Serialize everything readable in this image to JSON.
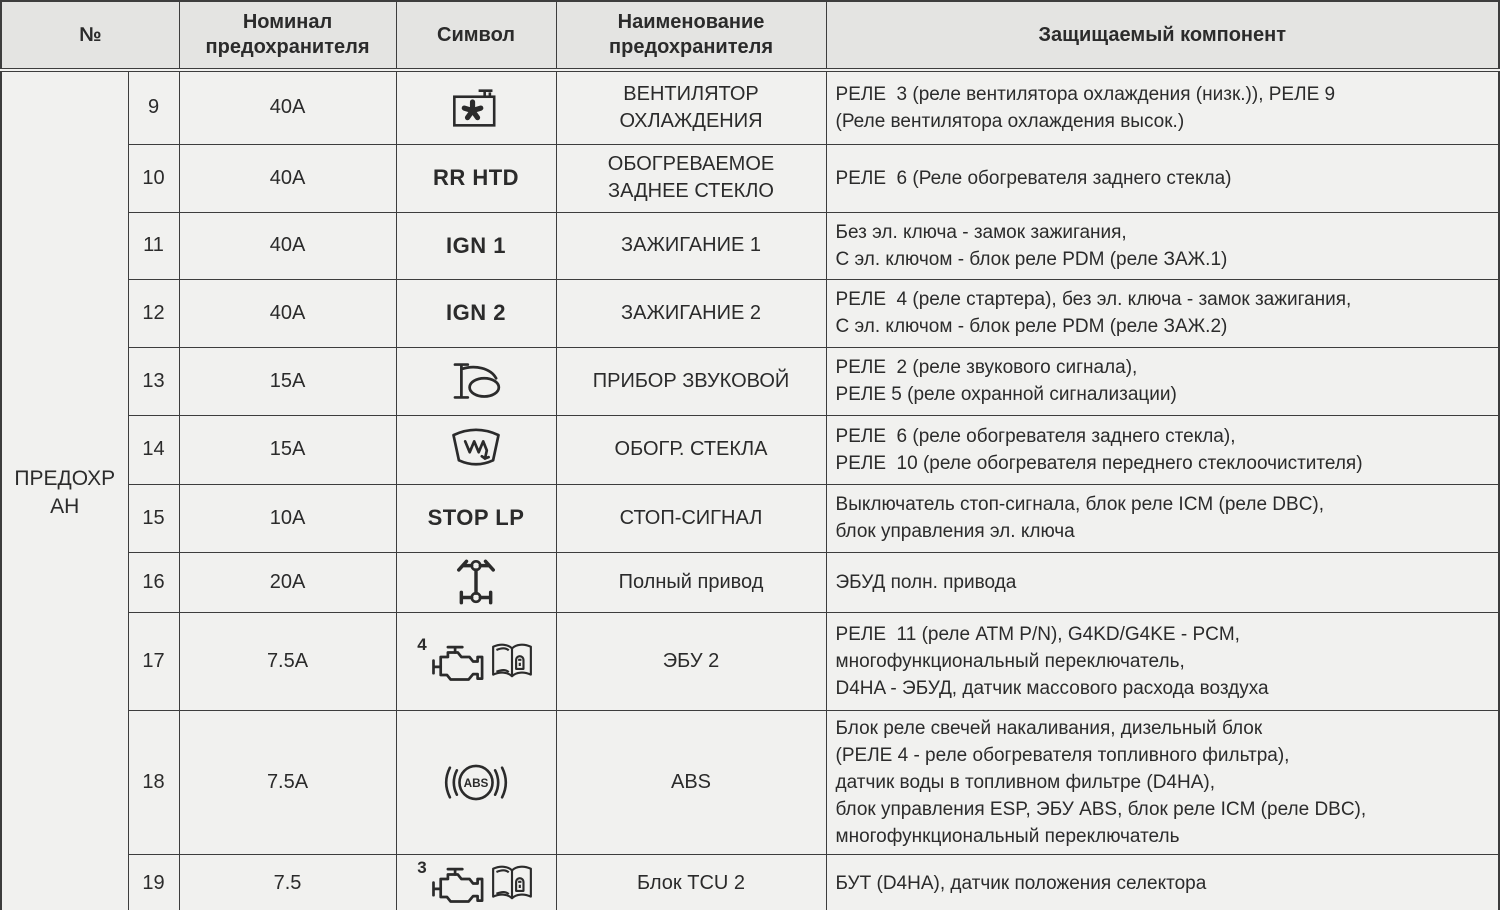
{
  "colors": {
    "cell_bg": "#f1f1ef",
    "header_bg": "#e4e4e2",
    "border": "#3d3d3d",
    "thick": "#1c1c1c",
    "text": "#2b2b2b"
  },
  "table": {
    "group_label": "ПРЕДОХР\nАН",
    "headers": {
      "num": "№",
      "rating": "Номинал\nпредохранителя",
      "symbol": "Символ",
      "name": "Наименование\nпредохранителя",
      "component": "Защищаемый компонент"
    },
    "rows": [
      {
        "num": "9",
        "rating": "40A",
        "symbol": {
          "icons": [
            "cooling-fan-icon"
          ]
        },
        "name": "ВЕНТИЛЯТОР\nОХЛАЖДЕНИЯ",
        "component": "РЕЛЕ  3 (реле вентилятора охлаждения (низк.)), РЕЛЕ 9\n(Реле вентилятора охлаждения высок.)"
      },
      {
        "num": "10",
        "rating": "40A",
        "symbol": {
          "text": "RR HTD"
        },
        "name": "ОБОГРЕВАЕМОЕ\nЗАДНЕЕ СТЕКЛО",
        "component": "РЕЛЕ  6 (Реле обогревателя заднего стекла)"
      },
      {
        "num": "11",
        "rating": "40A",
        "symbol": {
          "text": "IGN 1"
        },
        "name": "ЗАЖИГАНИЕ 1",
        "component": "Без эл. ключа - замок зажигания,\nС эл. ключом - блок реле PDM (реле ЗАЖ.1)"
      },
      {
        "num": "12",
        "rating": "40A",
        "symbol": {
          "text": "IGN 2"
        },
        "name": "ЗАЖИГАНИЕ 2",
        "component": "РЕЛЕ  4 (реле стартера), без эл. ключа - замок зажигания,\nС эл. ключом - блок реле PDM (реле ЗАЖ.2)"
      },
      {
        "num": "13",
        "rating": "15A",
        "symbol": {
          "icons": [
            "horn-icon"
          ]
        },
        "name": "ПРИБОР ЗВУКОВОЙ",
        "component": "РЕЛЕ  2 (реле звукового сигнала),\nРЕЛЕ 5 (реле охранной сигнализации)"
      },
      {
        "num": "14",
        "rating": "15A",
        "symbol": {
          "icons": [
            "windshield-defrost-icon"
          ]
        },
        "name": "ОБОГР. СТЕКЛА",
        "component": "РЕЛЕ  6 (реле обогревателя заднего стекла),\nРЕЛЕ  10 (реле обогревателя переднего стеклоочистителя)"
      },
      {
        "num": "15",
        "rating": "10A",
        "symbol": {
          "text": "STOP LP"
        },
        "name": "СТОП-СИГНАЛ",
        "component": "Выключатель стоп-сигнала, блок реле ICM (реле DBC),\nблок управления эл. ключа"
      },
      {
        "num": "16",
        "rating": "20A",
        "symbol": {
          "icons": [
            "drivetrain-4wd-icon"
          ]
        },
        "name": "Полный привод",
        "component": "ЭБУД полн. привода"
      },
      {
        "num": "17",
        "rating": "7.5A",
        "symbol": {
          "superscript": "4",
          "icons": [
            "engine-icon",
            "owners-manual-book-icon"
          ]
        },
        "name": "ЭБУ 2",
        "component": "РЕЛЕ  11 (реле ATM P/N), G4KD/G4KE - PCM,\nмногофункциональный переключатель,\nD4HA - ЭБУД, датчик массового расхода воздуха"
      },
      {
        "num": "18",
        "rating": "7.5A",
        "symbol": {
          "icons": [
            "abs-icon"
          ]
        },
        "name": "ABS",
        "component": "Блок реле свечей накаливания, дизельный блок\n(РЕЛЕ 4 - реле обогревателя топливного фильтра),\nдатчик воды в топливном фильтре (D4HA),\nблок управления ESP, ЭБУ ABS, блок реле ICM (реле DBC),\nмногофункциональный переключатель"
      },
      {
        "num": "19",
        "rating": "7.5",
        "symbol": {
          "superscript": "3",
          "icons": [
            "engine-icon",
            "owners-manual-book-icon"
          ]
        },
        "name": "Блок TCU 2",
        "component": "БУТ (D4HA), датчик положения селектора"
      }
    ]
  }
}
